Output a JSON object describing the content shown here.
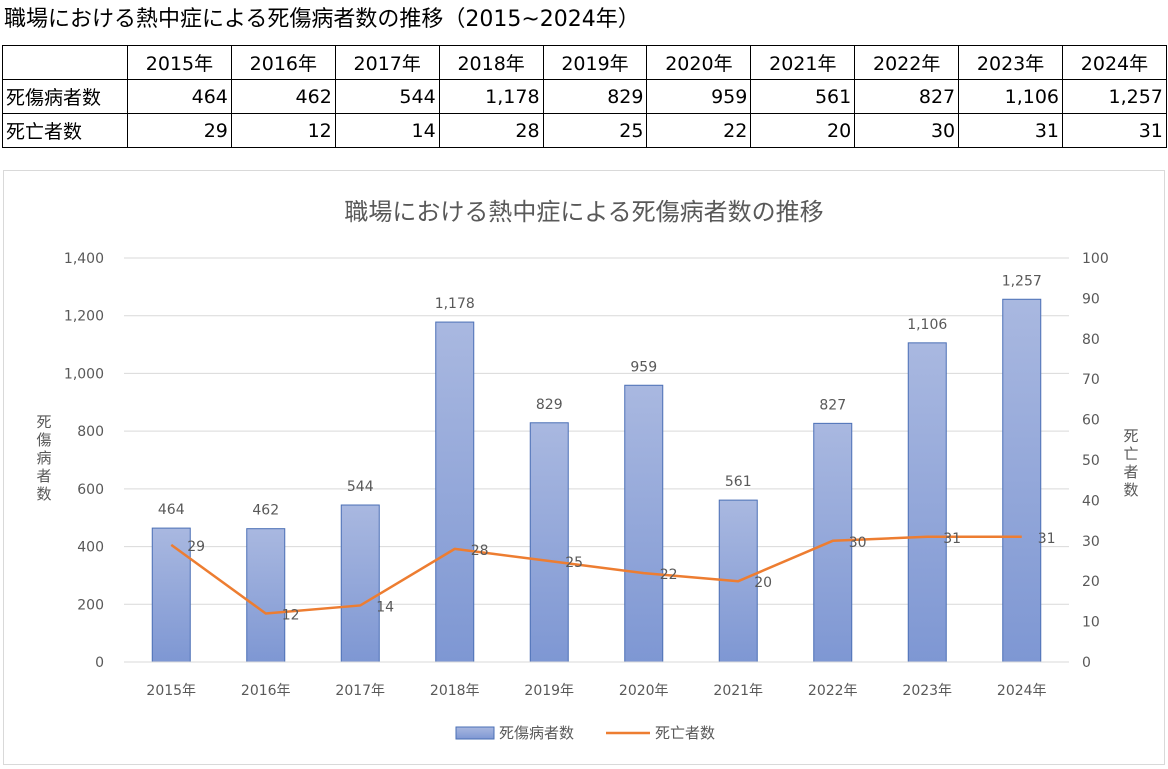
{
  "page_title": "職場における熱中症による死傷病者数の推移（2015~2024年）",
  "table": {
    "corner": "",
    "header": [
      "2015年",
      "2016年",
      "2017年",
      "2018年",
      "2019年",
      "2020年",
      "2021年",
      "2022年",
      "2023年",
      "2024年"
    ],
    "rows": [
      {
        "label": "死傷病者数",
        "values": [
          "464",
          "462",
          "544",
          "1,178",
          "829",
          "959",
          "561",
          "827",
          "1,106",
          "1,257"
        ]
      },
      {
        "label": "死亡者数",
        "values": [
          "29",
          "12",
          "14",
          "28",
          "25",
          "22",
          "20",
          "30",
          "31",
          "31"
        ]
      }
    ]
  },
  "chart_data": {
    "type": "bar",
    "title": "職場における熱中症による死傷病者数の推移",
    "categories": [
      "2015年",
      "2016年",
      "2017年",
      "2018年",
      "2019年",
      "2020年",
      "2021年",
      "2022年",
      "2023年",
      "2024年"
    ],
    "series": [
      {
        "name": "死傷病者数",
        "type": "bar",
        "axis": "left",
        "values": [
          464,
          462,
          544,
          1178,
          829,
          959,
          561,
          827,
          1106,
          1257
        ],
        "labels": [
          "464",
          "462",
          "544",
          "1,178",
          "829",
          "959",
          "561",
          "827",
          "1,106",
          "1,257"
        ]
      },
      {
        "name": "死亡者数",
        "type": "line",
        "axis": "right",
        "values": [
          29,
          12,
          14,
          28,
          25,
          22,
          20,
          30,
          31,
          31
        ],
        "labels": [
          "29",
          "12",
          "14",
          "28",
          "25",
          "22",
          "20",
          "30",
          "31",
          "31"
        ]
      }
    ],
    "ylabel": "死傷病者数",
    "y2label": "死亡者数",
    "ylim": [
      0,
      1400
    ],
    "y2lim": [
      0,
      100
    ],
    "yticks": [
      "0",
      "200",
      "400",
      "600",
      "800",
      "1,000",
      "1,200",
      "1,400"
    ],
    "y2ticks": [
      "0",
      "10",
      "20",
      "30",
      "40",
      "50",
      "60",
      "70",
      "80",
      "90",
      "100"
    ],
    "grid": true,
    "legend": "bottom",
    "colors": {
      "bar_top": "#a9b8e0",
      "bar_bottom": "#7e97d3",
      "bar_edge": "#4a6fb5",
      "line": "#ed7d31",
      "text": "#595959",
      "grid": "#d9d9d9"
    }
  }
}
